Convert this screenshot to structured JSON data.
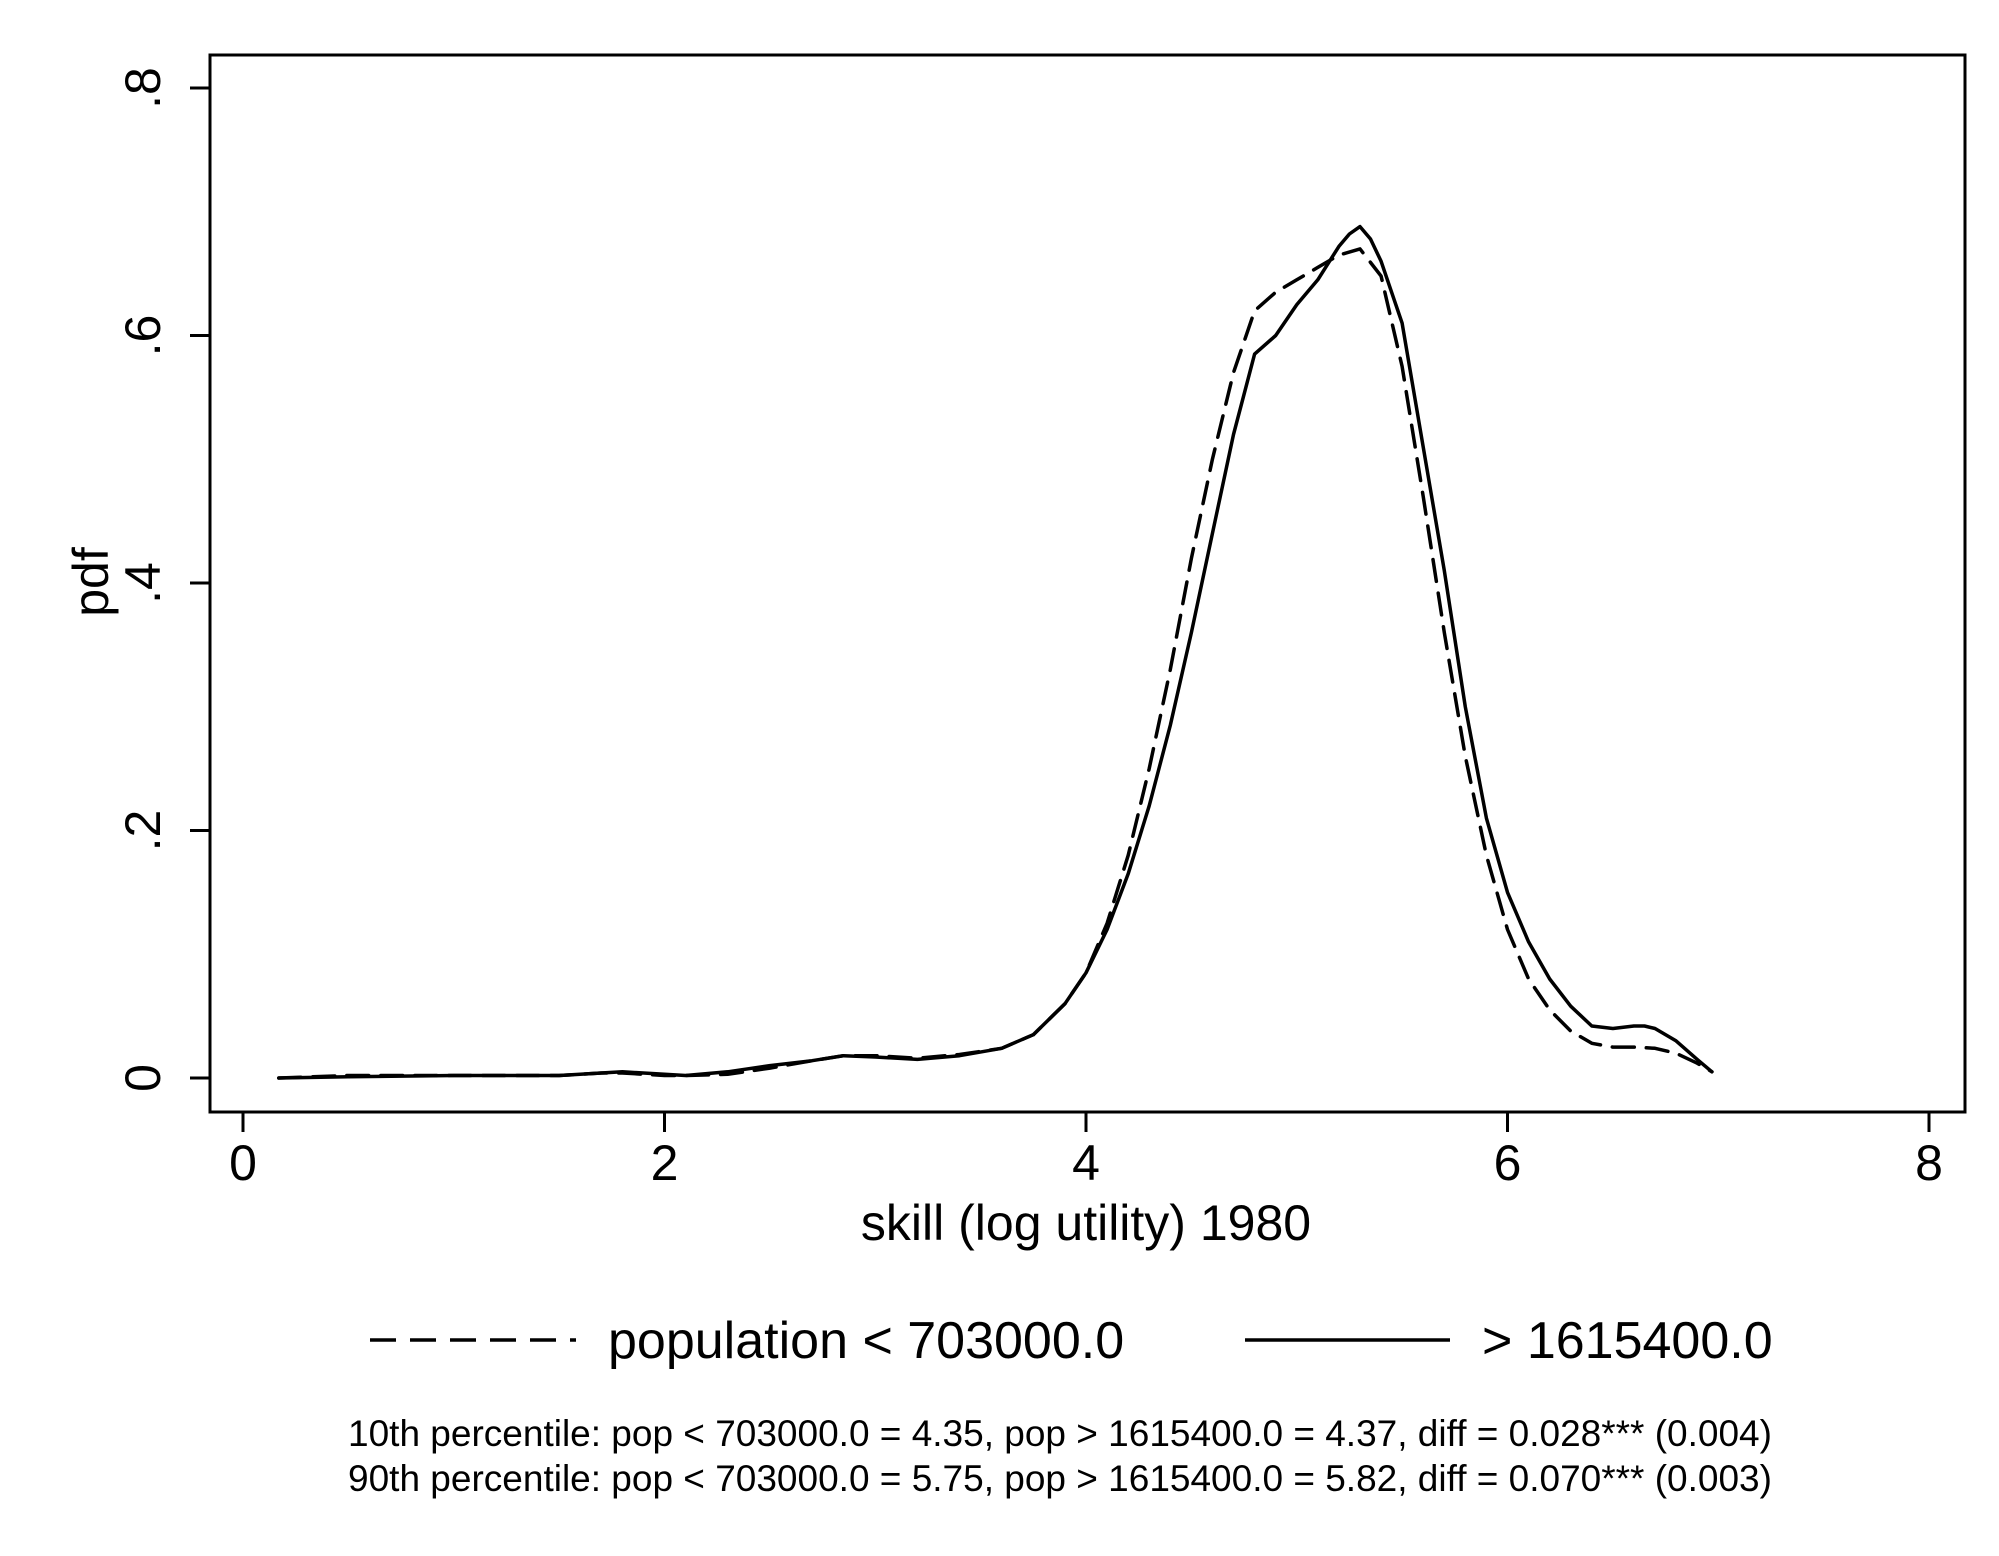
{
  "chart_data": {
    "type": "line",
    "xlabel": "skill (log utility) 1980",
    "ylabel": "pdf",
    "xlim": [
      0,
      8
    ],
    "ylim": [
      0,
      0.8
    ],
    "x_ticks": [
      0,
      2,
      4,
      6,
      8
    ],
    "x_tick_labels": [
      "0",
      "2",
      "4",
      "6",
      "8"
    ],
    "y_ticks": [
      0,
      0.2,
      0.4,
      0.6,
      0.8
    ],
    "y_tick_labels": [
      "0",
      ".2",
      ".4",
      ".6",
      ".8"
    ],
    "grid": false,
    "legend_placement": "bottom",
    "series": [
      {
        "name": "population < 703000.0",
        "style": "dashed",
        "color": "#000000",
        "x": [
          0.17,
          0.5,
          1.0,
          1.5,
          1.7,
          1.8,
          2.0,
          2.1,
          2.3,
          2.5,
          2.7,
          2.85,
          3.0,
          3.2,
          3.4,
          3.6,
          3.75,
          3.9,
          4.0,
          4.1,
          4.2,
          4.3,
          4.4,
          4.5,
          4.6,
          4.7,
          4.8,
          4.9,
          5.0,
          5.1,
          5.2,
          5.3,
          5.4,
          5.5,
          5.6,
          5.7,
          5.8,
          5.9,
          6.0,
          6.1,
          6.2,
          6.3,
          6.4,
          6.5,
          6.6,
          6.7,
          6.8,
          6.9,
          6.97
        ],
        "y": [
          0.0,
          0.002,
          0.002,
          0.002,
          0.004,
          0.004,
          0.002,
          0.002,
          0.003,
          0.008,
          0.014,
          0.018,
          0.018,
          0.016,
          0.019,
          0.024,
          0.035,
          0.06,
          0.085,
          0.125,
          0.18,
          0.25,
          0.33,
          0.42,
          0.5,
          0.57,
          0.62,
          0.635,
          0.645,
          0.655,
          0.665,
          0.67,
          0.648,
          0.575,
          0.47,
          0.36,
          0.26,
          0.18,
          0.12,
          0.08,
          0.055,
          0.038,
          0.028,
          0.025,
          0.025,
          0.024,
          0.02,
          0.012,
          0.005
        ]
      },
      {
        "name": "> 1615400.0",
        "style": "solid",
        "color": "#000000",
        "x": [
          0.17,
          0.5,
          1.0,
          1.5,
          1.7,
          1.8,
          2.0,
          2.1,
          2.3,
          2.5,
          2.7,
          2.85,
          3.0,
          3.2,
          3.4,
          3.6,
          3.75,
          3.9,
          4.0,
          4.1,
          4.2,
          4.3,
          4.4,
          4.5,
          4.6,
          4.7,
          4.8,
          4.9,
          5.0,
          5.1,
          5.2,
          5.25,
          5.3,
          5.35,
          5.4,
          5.5,
          5.6,
          5.7,
          5.8,
          5.9,
          6.0,
          6.1,
          6.2,
          6.3,
          6.4,
          6.5,
          6.6,
          6.65,
          6.7,
          6.8,
          6.9,
          6.97
        ],
        "y": [
          0.0,
          0.001,
          0.002,
          0.002,
          0.004,
          0.005,
          0.003,
          0.002,
          0.005,
          0.01,
          0.014,
          0.018,
          0.017,
          0.015,
          0.018,
          0.024,
          0.035,
          0.06,
          0.085,
          0.12,
          0.165,
          0.22,
          0.285,
          0.36,
          0.44,
          0.52,
          0.585,
          0.6,
          0.625,
          0.645,
          0.672,
          0.682,
          0.688,
          0.678,
          0.66,
          0.61,
          0.51,
          0.41,
          0.3,
          0.21,
          0.15,
          0.11,
          0.08,
          0.058,
          0.042,
          0.04,
          0.042,
          0.042,
          0.04,
          0.03,
          0.015,
          0.005
        ]
      }
    ],
    "notes": [
      "10th percentile: pop < 703000.0 = 4.35, pop > 1615400.0 = 4.37, diff = 0.028*** (0.004)",
      "90th percentile: pop < 703000.0 = 5.75, pop > 1615400.0 = 5.82, diff = 0.070*** (0.003)"
    ]
  }
}
